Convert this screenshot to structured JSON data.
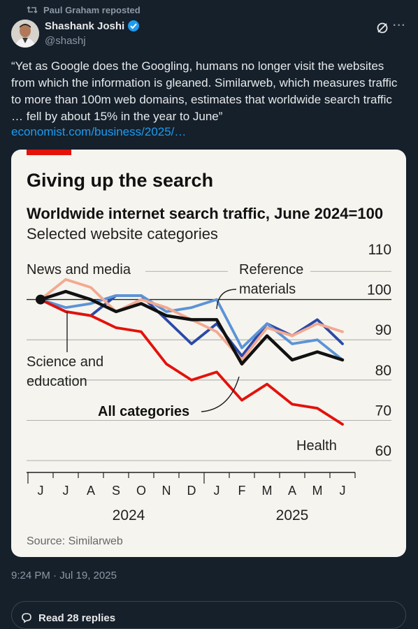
{
  "repost": {
    "text": "Paul Graham reposted",
    "icon": "repost-icon"
  },
  "author": {
    "name": "Shashank Joshi",
    "handle": "@shashj",
    "verified": true
  },
  "tweet": {
    "text": "“Yet as Google does the Googling, humans no longer visit the websites from which the information is gleaned. Similarweb, which measures traffic to more than 100m web domains, estimates that worldwide search traffic … fell by about 15% in the year to June”",
    "link": "economist.com/business/2025/…"
  },
  "timestamp": "9:24 PM · Jul 19, 2025",
  "replies": {
    "label": "Read 28 replies"
  },
  "colors": {
    "background": "#15202b",
    "link": "#1d9bf0",
    "economist_red": "#e3120b"
  },
  "chart_data": {
    "type": "line",
    "title": "Giving up the search",
    "subtitle": "Worldwide internet search traffic, June 2024=100",
    "subtitle2": "Selected website categories",
    "source": "Source: Similarweb",
    "x": [
      "J",
      "J",
      "A",
      "S",
      "O",
      "N",
      "D",
      "J",
      "F",
      "M",
      "A",
      "M",
      "J"
    ],
    "year_labels": [
      "2024",
      "2025"
    ],
    "ylim": [
      60,
      110
    ],
    "yticks": [
      60,
      70,
      80,
      90,
      100,
      110
    ],
    "grid": true,
    "series": [
      {
        "name": "News and media",
        "color": "#2b49a8",
        "values": [
          100,
          97,
          96,
          101,
          101,
          95,
          89,
          94,
          86,
          94,
          91,
          95,
          89
        ]
      },
      {
        "name": "Reference materials",
        "color": "#5b93d6",
        "values": [
          100,
          98,
          99,
          101,
          101,
          97,
          98,
          100,
          88,
          94,
          89,
          90,
          85
        ]
      },
      {
        "name": "Science and education",
        "color": "#f3a990",
        "values": [
          100,
          105,
          103,
          97,
          100,
          98,
          95,
          92,
          85,
          93,
          91,
          94,
          92
        ]
      },
      {
        "name": "All categories",
        "color": "#111111",
        "values": [
          100,
          102,
          100,
          97,
          99,
          96,
          95,
          95,
          84,
          91,
          85,
          87,
          85
        ]
      },
      {
        "name": "Health",
        "color": "#e3120b",
        "values": [
          100,
          97,
          96,
          93,
          92,
          84,
          80,
          82,
          75,
          79,
          74,
          73,
          69
        ]
      }
    ],
    "annotations": [
      "News and media",
      "Reference materials",
      "Science and education",
      "All categories",
      "Health"
    ]
  }
}
